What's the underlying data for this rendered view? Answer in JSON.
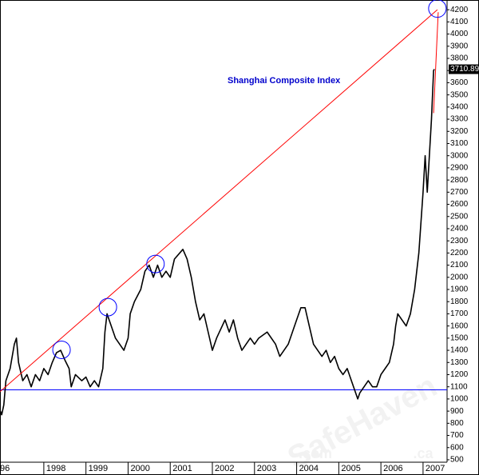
{
  "chart_data": {
    "type": "line",
    "title": "Shanghai Composite Index",
    "title_color": "#0000cc",
    "color": "#000000",
    "x": [
      1996.97,
      1997.0,
      1997.05,
      1997.1,
      1997.2,
      1997.3,
      1997.35,
      1997.4,
      1997.5,
      1997.6,
      1997.7,
      1997.8,
      1997.9,
      1998.0,
      1998.1,
      1998.2,
      1998.3,
      1998.4,
      1998.5,
      1998.6,
      1998.65,
      1998.75,
      1998.9,
      1999.0,
      1999.1,
      1999.2,
      1999.3,
      1999.4,
      1999.45,
      1999.5,
      1999.6,
      1999.7,
      1999.8,
      1999.9,
      2000.0,
      2000.05,
      2000.15,
      2000.3,
      2000.4,
      2000.5,
      2000.6,
      2000.7,
      2000.8,
      2000.9,
      2001.0,
      2001.1,
      2001.3,
      2001.4,
      2001.5,
      2001.6,
      2001.7,
      2001.8,
      2001.9,
      2002.0,
      2002.1,
      2002.3,
      2002.4,
      2002.5,
      2002.6,
      2002.7,
      2002.8,
      2002.9,
      2003.0,
      2003.1,
      2003.3,
      2003.5,
      2003.6,
      2003.8,
      2003.9,
      2004.0,
      2004.1,
      2004.2,
      2004.3,
      2004.4,
      2004.5,
      2004.6,
      2004.7,
      2004.8,
      2004.9,
      2005.0,
      2005.1,
      2005.2,
      2005.3,
      2005.4,
      2005.45,
      2005.5,
      2005.6,
      2005.7,
      2005.8,
      2005.9,
      2006.0,
      2006.1,
      2006.2,
      2006.3,
      2006.35,
      2006.4,
      2006.5,
      2006.6,
      2006.7,
      2006.8,
      2006.9,
      2007.0,
      2007.05,
      2007.1,
      2007.15,
      2007.2,
      2007.25,
      2007.27
    ],
    "values": [
      900,
      870,
      950,
      1150,
      1250,
      1450,
      1500,
      1300,
      1150,
      1200,
      1100,
      1200,
      1150,
      1250,
      1200,
      1300,
      1380,
      1400,
      1320,
      1250,
      1100,
      1200,
      1150,
      1180,
      1100,
      1150,
      1100,
      1250,
      1550,
      1700,
      1600,
      1500,
      1450,
      1400,
      1500,
      1700,
      1800,
      1900,
      2050,
      2100,
      2000,
      2100,
      2000,
      2050,
      2000,
      2150,
      2230,
      2150,
      2000,
      1800,
      1650,
      1700,
      1550,
      1400,
      1500,
      1650,
      1550,
      1650,
      1500,
      1400,
      1450,
      1500,
      1450,
      1500,
      1550,
      1450,
      1350,
      1450,
      1550,
      1650,
      1750,
      1750,
      1600,
      1450,
      1400,
      1350,
      1400,
      1300,
      1350,
      1250,
      1200,
      1250,
      1150,
      1050,
      1000,
      1050,
      1100,
      1150,
      1100,
      1100,
      1200,
      1250,
      1300,
      1450,
      1600,
      1700,
      1650,
      1600,
      1700,
      1900,
      2200,
      2700,
      3000,
      2700,
      3000,
      3300,
      3700,
      3710.89
    ],
    "last_value": 3710.89,
    "xlim": [
      1996.96,
      2007.57
    ],
    "xticks": [
      {
        "value": 1996,
        "label": "96"
      },
      1998,
      1999,
      2000,
      2001,
      2002,
      2003,
      2004,
      2005,
      2006,
      2007
    ],
    "ylim": [
      480,
      4280
    ],
    "yticks": [
      500,
      600,
      700,
      800,
      900,
      1000,
      1100,
      1200,
      1300,
      1400,
      1500,
      1600,
      1700,
      1800,
      1900,
      2000,
      2100,
      2200,
      2300,
      2400,
      2500,
      2600,
      2700,
      2800,
      2900,
      3000,
      3100,
      3200,
      3300,
      3400,
      3500,
      3600,
      3700,
      3800,
      3900,
      4000,
      4100,
      4200
    ],
    "trend_line": {
      "color": "#ff0000",
      "x": [
        1996.96,
        2007.34
      ],
      "y": [
        1060,
        4200
      ]
    },
    "peak_line": {
      "color": "#ff0000",
      "x": [
        2007.36,
        2007.25
      ],
      "y": [
        4180,
        3350
      ]
    },
    "support_level": {
      "color": "#0000ff",
      "value": 1075
    },
    "circles": {
      "color": "#0000ff",
      "x": [
        1998.42,
        1999.52,
        2000.65,
        2007.34
      ],
      "y": [
        1404,
        1755,
        2110,
        4210
      ]
    },
    "watermark": {
      "text": "SafeHaven",
      "com": ".com",
      "ca": ".ca"
    }
  }
}
